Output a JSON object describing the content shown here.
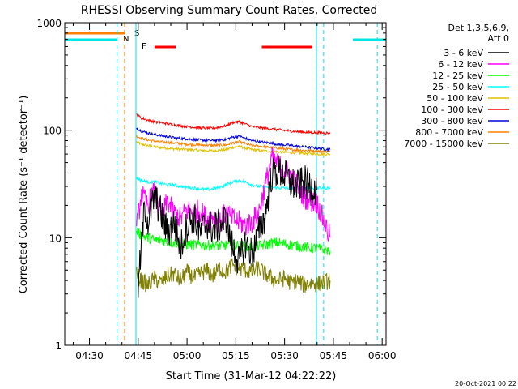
{
  "chart_data": {
    "type": "line",
    "title": "RHESSI Observing Summary Count Rates, Corrected",
    "xlabel": "Start Time (31-Mar-12 04:22:22)",
    "ylabel": "Corrected Count Rate (s⁻¹ detector⁻¹)",
    "yscale": "log",
    "ylim": [
      1,
      1000
    ],
    "xlim_minutes": [
      22.4,
      121.2
    ],
    "x_tick_minutes": [
      30,
      45,
      60,
      75,
      90,
      105,
      120
    ],
    "x_tick_labels": [
      "04:30",
      "04:45",
      "05:00",
      "05:15",
      "05:30",
      "05:45",
      "06:00"
    ],
    "y_tick_values": [
      1,
      10,
      100,
      1000
    ],
    "y_tick_labels": [
      "1",
      "10",
      "100",
      "1000"
    ],
    "legend_header": [
      "Det 1,3,5,6,9,",
      "Att 0"
    ],
    "legend_position": "right",
    "footer_date": "20-Oct-2021 00:22",
    "flags": {
      "saa": {
        "label": "S",
        "color": "#ff8000",
        "segments": [
          [
            22.4,
            40.8
          ]
        ]
      },
      "night": {
        "label": "N",
        "color": "#00e5e5",
        "segments": [
          [
            22.4,
            38.5
          ],
          [
            111.0,
            121.2
          ]
        ]
      },
      "flare": {
        "label": "F",
        "color": "#ff0000",
        "segments": [
          [
            50.0,
            56.5
          ],
          [
            83.0,
            98.5
          ]
        ]
      }
    },
    "vlines": [
      {
        "minute": 22.4,
        "color": "#00e5e5",
        "style": "solid"
      },
      {
        "minute": 38.5,
        "color": "#00e5e5",
        "style": "dashed"
      },
      {
        "minute": 40.8,
        "color": "#ff8000",
        "style": "dashed"
      },
      {
        "minute": 44.3,
        "color": "#00e5e5",
        "style": "solid"
      },
      {
        "minute": 99.8,
        "color": "#00e5e5",
        "style": "solid"
      },
      {
        "minute": 102.0,
        "color": "#00e5e5",
        "style": "dashed"
      },
      {
        "minute": 118.5,
        "color": "#00e5e5",
        "style": "dashed"
      }
    ],
    "series": [
      {
        "name": "3 - 6 keV",
        "color": "#000000",
        "x": [
          45,
          46,
          47,
          48,
          50,
          52,
          54,
          56,
          58,
          60,
          62,
          64,
          66,
          68,
          70,
          72,
          74,
          76,
          78,
          80,
          82,
          84,
          85,
          86,
          88,
          90,
          92,
          94,
          96,
          98,
          100
        ],
        "y": [
          3.5,
          8.5,
          20,
          14,
          24,
          17,
          11,
          14,
          8,
          13,
          16,
          11,
          14,
          12,
          13,
          15,
          8,
          6,
          9,
          7,
          11,
          16,
          25,
          38,
          42,
          38,
          32,
          30,
          33,
          30,
          28
        ]
      },
      {
        "name": "6 - 12 keV",
        "color": "#ff00ff",
        "x": [
          44.5,
          45,
          46,
          47,
          48,
          49,
          50,
          51,
          52,
          53,
          54,
          56,
          58,
          60,
          62,
          64,
          66,
          68,
          70,
          72,
          74,
          76,
          78,
          80,
          82,
          84,
          86,
          88,
          90,
          92,
          94,
          96,
          98,
          100,
          104
        ],
        "y": [
          12,
          16,
          26,
          22,
          20,
          24,
          26,
          22,
          15,
          18,
          22,
          17,
          15,
          18,
          17,
          18,
          15,
          16,
          14,
          17,
          15,
          14,
          13,
          14,
          17,
          30,
          55,
          48,
          42,
          38,
          30,
          24,
          22,
          21,
          10
        ]
      },
      {
        "name": "12 - 25 keV",
        "color": "#00ff00",
        "x": [
          44.5,
          46,
          48,
          50,
          52,
          54,
          56,
          58,
          60,
          62,
          64,
          66,
          68,
          70,
          72,
          74,
          76,
          78,
          80,
          82,
          84,
          86,
          88,
          90,
          92,
          94,
          96,
          98,
          100,
          104
        ],
        "y": [
          11.5,
          10.5,
          10,
          9.5,
          9.5,
          9.2,
          9,
          8.8,
          8.7,
          8.6,
          8.6,
          8.5,
          8.5,
          8.4,
          8.5,
          8.6,
          8.5,
          8.3,
          8.2,
          8.4,
          8.6,
          8.9,
          9,
          8.8,
          8.6,
          8.4,
          8.2,
          8,
          8,
          7.5
        ]
      },
      {
        "name": "25 - 50 keV",
        "color": "#00ffff",
        "x": [
          44.5,
          46,
          48,
          50,
          52,
          54,
          56,
          58,
          60,
          62,
          64,
          66,
          68,
          70,
          72,
          74,
          76,
          78,
          80,
          82,
          84,
          86,
          88,
          90,
          92,
          94,
          96,
          98,
          100,
          104
        ],
        "y": [
          36,
          34,
          33,
          33,
          32,
          31,
          31,
          30,
          29.5,
          29,
          28.5,
          28,
          28.5,
          29.5,
          31,
          33,
          34,
          33,
          31,
          30,
          29.5,
          29.5,
          29,
          29,
          29,
          29,
          29,
          29,
          29,
          29
        ]
      },
      {
        "name": "50 - 100 keV",
        "color": "#e0c000",
        "x": [
          44.5,
          46,
          48,
          50,
          52,
          54,
          56,
          60,
          64,
          68,
          72,
          74,
          76,
          78,
          80,
          84,
          88,
          92,
          96,
          100,
          104
        ],
        "y": [
          78,
          74,
          72,
          70,
          69,
          68,
          67,
          66,
          65,
          64.5,
          66,
          69,
          71,
          68,
          66,
          64,
          63,
          62,
          61,
          60,
          60
        ]
      },
      {
        "name": "100 - 300 keV",
        "color": "#ff0000",
        "x": [
          44.5,
          46,
          48,
          50,
          52,
          54,
          56,
          60,
          64,
          68,
          72,
          74,
          76,
          78,
          80,
          84,
          88,
          92,
          96,
          100,
          104
        ],
        "y": [
          140,
          130,
          124,
          120,
          118,
          115,
          112,
          108,
          105,
          104,
          110,
          118,
          120,
          114,
          108,
          104,
          101,
          98,
          96,
          95,
          94
        ]
      },
      {
        "name": "300 - 800 keV",
        "color": "#0000dd",
        "x": [
          44.5,
          46,
          48,
          50,
          52,
          54,
          56,
          60,
          64,
          68,
          72,
          74,
          76,
          78,
          80,
          84,
          88,
          92,
          96,
          100,
          104
        ],
        "y": [
          105,
          98,
          94,
          91,
          89,
          87,
          85,
          83,
          81,
          80,
          82,
          86,
          88,
          84,
          80,
          77,
          74,
          72,
          70,
          68,
          66
        ]
      },
      {
        "name": "800 - 7000 keV",
        "color": "#ff8000",
        "x": [
          44.5,
          46,
          48,
          50,
          52,
          54,
          56,
          60,
          64,
          68,
          72,
          74,
          76,
          78,
          80,
          84,
          88,
          92,
          96,
          100,
          104
        ],
        "y": [
          88,
          84,
          81,
          79,
          78,
          77,
          76,
          74,
          73,
          72,
          73,
          76,
          78,
          75,
          72,
          70,
          68,
          66,
          65,
          64,
          63
        ]
      },
      {
        "name": "7000 - 15000 keV",
        "color": "#808000",
        "x": [
          44.5,
          46,
          48,
          50,
          52,
          54,
          56,
          58,
          60,
          62,
          64,
          66,
          68,
          70,
          72,
          74,
          76,
          78,
          80,
          82,
          84,
          86,
          88,
          90,
          92,
          94,
          96,
          98,
          100,
          104
        ],
        "y": [
          4.5,
          4,
          3.6,
          4.2,
          3.8,
          4.4,
          4.6,
          4,
          4.8,
          4.2,
          4.6,
          5,
          4.4,
          5.2,
          4.8,
          5.6,
          5.2,
          5,
          4.8,
          5.2,
          4.6,
          4.2,
          4,
          4.2,
          3.8,
          4,
          3.6,
          3.8,
          3.7,
          4
        ]
      }
    ]
  }
}
